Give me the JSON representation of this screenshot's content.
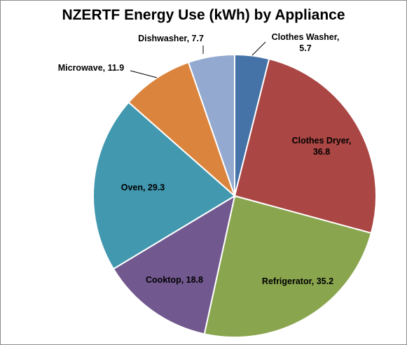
{
  "chart_data": {
    "type": "pie",
    "title": "NZERTF Energy Use (kWh) by Appliance",
    "slices": [
      {
        "label": "Clothes Washer",
        "value": 5.7,
        "display": "5.7",
        "color": "#4572a7"
      },
      {
        "label": "Clothes Dryer",
        "value": 36.8,
        "display": "36.8",
        "color": "#aa4643"
      },
      {
        "label": "Refrigerator",
        "value": 35.2,
        "display": "35.2",
        "color": "#89a54e"
      },
      {
        "label": "Cooktop",
        "value": 18.8,
        "display": "18.8",
        "color": "#71588f"
      },
      {
        "label": "Oven",
        "value": 29.3,
        "display": "29.3",
        "color": "#4198af"
      },
      {
        "label": "Microwave",
        "value": 11.9,
        "display": "11.9",
        "color": "#db843d"
      },
      {
        "label": "Dishwasher",
        "value": 7.7,
        "display": "7.7",
        "color": "#93a9cf"
      }
    ],
    "start_angle": "12 o'clock",
    "direction": "clockwise",
    "legend": "none"
  }
}
